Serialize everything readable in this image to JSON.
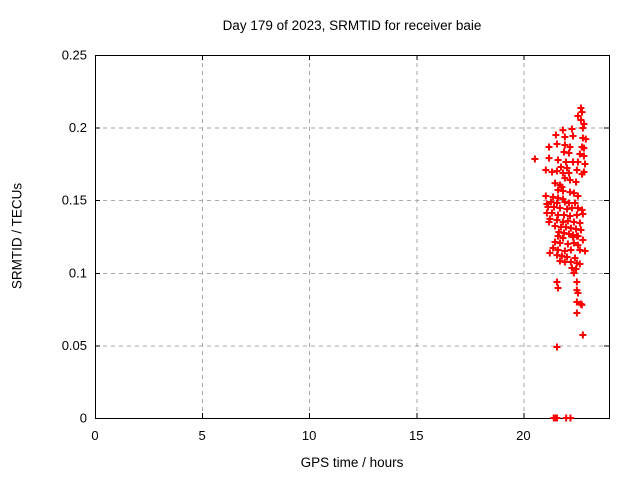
{
  "window": {
    "background_color": "#ffffff"
  },
  "chart_data": {
    "type": "scatter",
    "title": "Day 179 of 2023, SRMTID for receiver baie",
    "xlabel": "GPS time / hours",
    "ylabel": "SRMTID / TECUs",
    "xlim": [
      0,
      24
    ],
    "ylim": [
      0,
      0.25
    ],
    "xticks": [
      0,
      5,
      10,
      15,
      20
    ],
    "xtick_labels": [
      "0",
      "5",
      "10",
      "15",
      "20"
    ],
    "yticks": [
      0,
      0.05,
      0.1,
      0.15,
      0.2,
      0.25
    ],
    "ytick_labels": [
      "0",
      "0.05",
      "0.1",
      "0.15",
      "0.2",
      "0.25"
    ],
    "grid": true,
    "grid_style": "dashed",
    "legend_position": "none",
    "colors": {
      "marker": "#ff0000",
      "axis": "#000000",
      "grid": "#a9a9a9",
      "text": "#000000",
      "background": "#ffffff"
    },
    "series": [
      {
        "name": "SRMTID",
        "marker": "plus",
        "color": "#ff0000",
        "points": [
          [
            22.69,
            0.2135
          ],
          [
            22.74,
            0.2107
          ],
          [
            22.55,
            0.208
          ],
          [
            22.69,
            0.2052
          ],
          [
            22.83,
            0.2025
          ],
          [
            22.78,
            0.1997
          ],
          [
            21.85,
            0.1983
          ],
          [
            22.27,
            0.199
          ],
          [
            21.52,
            0.1949
          ],
          [
            21.94,
            0.1935
          ],
          [
            22.32,
            0.1942
          ],
          [
            22.78,
            0.1928
          ],
          [
            22.92,
            0.1921
          ],
          [
            21.57,
            0.1887
          ],
          [
            21.2,
            0.1866
          ],
          [
            21.94,
            0.188
          ],
          [
            22.18,
            0.1866
          ],
          [
            22.74,
            0.1866
          ],
          [
            22.83,
            0.1859
          ],
          [
            21.9,
            0.1832
          ],
          [
            22.13,
            0.1825
          ],
          [
            22.64,
            0.1818
          ],
          [
            22.83,
            0.1804
          ],
          [
            21.2,
            0.179
          ],
          [
            21.62,
            0.1777
          ],
          [
            21.99,
            0.1763
          ],
          [
            22.32,
            0.1763
          ],
          [
            22.55,
            0.1763
          ],
          [
            22.88,
            0.1749
          ],
          [
            21.76,
            0.1729
          ],
          [
            22.04,
            0.1722
          ],
          [
            22.5,
            0.1708
          ],
          [
            22.83,
            0.1694
          ],
          [
            20.54,
            0.1784
          ],
          [
            21.34,
            0.1694
          ],
          [
            21.57,
            0.1701
          ],
          [
            21.85,
            0.1687
          ],
          [
            22.13,
            0.1687
          ],
          [
            22.74,
            0.168
          ],
          [
            21.94,
            0.1653
          ],
          [
            22.18,
            0.1639
          ],
          [
            22.46,
            0.1625
          ],
          [
            21.48,
            0.1618
          ],
          [
            21.71,
            0.1605
          ],
          [
            21.8,
            0.1591
          ],
          [
            21.62,
            0.157
          ],
          [
            21.85,
            0.1563
          ],
          [
            22.18,
            0.1556
          ],
          [
            22.36,
            0.1549
          ],
          [
            22.55,
            0.1529
          ],
          [
            21.39,
            0.1522
          ],
          [
            21.62,
            0.1515
          ],
          [
            21.85,
            0.1508
          ],
          [
            21.05,
            0.1529
          ],
          [
            21.29,
            0.1488
          ],
          [
            21.57,
            0.1481
          ],
          [
            21.94,
            0.1488
          ],
          [
            22.13,
            0.1481
          ],
          [
            22.41,
            0.1481
          ],
          [
            21.1,
            0.1474
          ],
          [
            21.15,
            0.1453
          ],
          [
            21.43,
            0.1453
          ],
          [
            21.71,
            0.1446
          ],
          [
            22.04,
            0.1439
          ],
          [
            22.27,
            0.1446
          ],
          [
            22.55,
            0.1446
          ],
          [
            22.74,
            0.1433
          ],
          [
            21.1,
            0.1412
          ],
          [
            21.34,
            0.1412
          ],
          [
            21.62,
            0.1398
          ],
          [
            21.9,
            0.1398
          ],
          [
            22.18,
            0.1391
          ],
          [
            22.5,
            0.1398
          ],
          [
            22.78,
            0.1405
          ],
          [
            21.24,
            0.1371
          ],
          [
            21.57,
            0.1364
          ],
          [
            21.85,
            0.135
          ],
          [
            22.08,
            0.1357
          ],
          [
            22.36,
            0.135
          ],
          [
            22.64,
            0.1343
          ],
          [
            21.48,
            0.1322
          ],
          [
            21.76,
            0.1315
          ],
          [
            21.99,
            0.1315
          ],
          [
            22.22,
            0.1308
          ],
          [
            22.46,
            0.1302
          ],
          [
            22.69,
            0.1295
          ],
          [
            21.66,
            0.1281
          ],
          [
            21.9,
            0.1274
          ],
          [
            22.13,
            0.1267
          ],
          [
            22.32,
            0.126
          ],
          [
            22.55,
            0.1253
          ],
          [
            21.05,
            0.1708
          ],
          [
            21.62,
            0.1253
          ],
          [
            21.85,
            0.124
          ],
          [
            22.32,
            0.1246
          ],
          [
            22.5,
            0.1253
          ],
          [
            22.78,
            0.1226
          ],
          [
            21.48,
            0.1212
          ],
          [
            21.71,
            0.1205
          ],
          [
            22.08,
            0.1198
          ],
          [
            22.36,
            0.1205
          ],
          [
            22.55,
            0.1191
          ],
          [
            21.39,
            0.1171
          ],
          [
            21.62,
            0.1157
          ],
          [
            21.94,
            0.115
          ],
          [
            22.22,
            0.1157
          ],
          [
            22.64,
            0.1157
          ],
          [
            22.88,
            0.115
          ],
          [
            21.57,
            0.1122
          ],
          [
            21.8,
            0.1116
          ],
          [
            22.04,
            0.1109
          ],
          [
            22.41,
            0.1102
          ],
          [
            21.71,
            0.1081
          ],
          [
            21.94,
            0.1074
          ],
          [
            22.22,
            0.1074
          ],
          [
            22.5,
            0.1067
          ],
          [
            22.64,
            0.1061
          ],
          [
            22.27,
            0.1033
          ],
          [
            22.46,
            0.1026
          ],
          [
            22.36,
            0.0999
          ],
          [
            21.2,
            0.135
          ],
          [
            21.24,
            0.1136
          ],
          [
            21.57,
            0.0937
          ],
          [
            22.5,
            0.0937
          ],
          [
            21.62,
            0.0895
          ],
          [
            22.5,
            0.0881
          ],
          [
            22.55,
            0.0861
          ],
          [
            22.5,
            0.0799
          ],
          [
            22.69,
            0.0785
          ],
          [
            22.73,
            0.0779
          ],
          [
            22.5,
            0.0723
          ],
          [
            22.78,
            0.0572
          ],
          [
            21.57,
            0.0489
          ],
          [
            21.42,
            0.0
          ],
          [
            21.46,
            0.0
          ],
          [
            21.5,
            0.0
          ],
          [
            21.54,
            0.0
          ],
          [
            21.57,
            0.0
          ],
          [
            22.0,
            0.0
          ],
          [
            22.2,
            0.0
          ]
        ]
      }
    ]
  }
}
